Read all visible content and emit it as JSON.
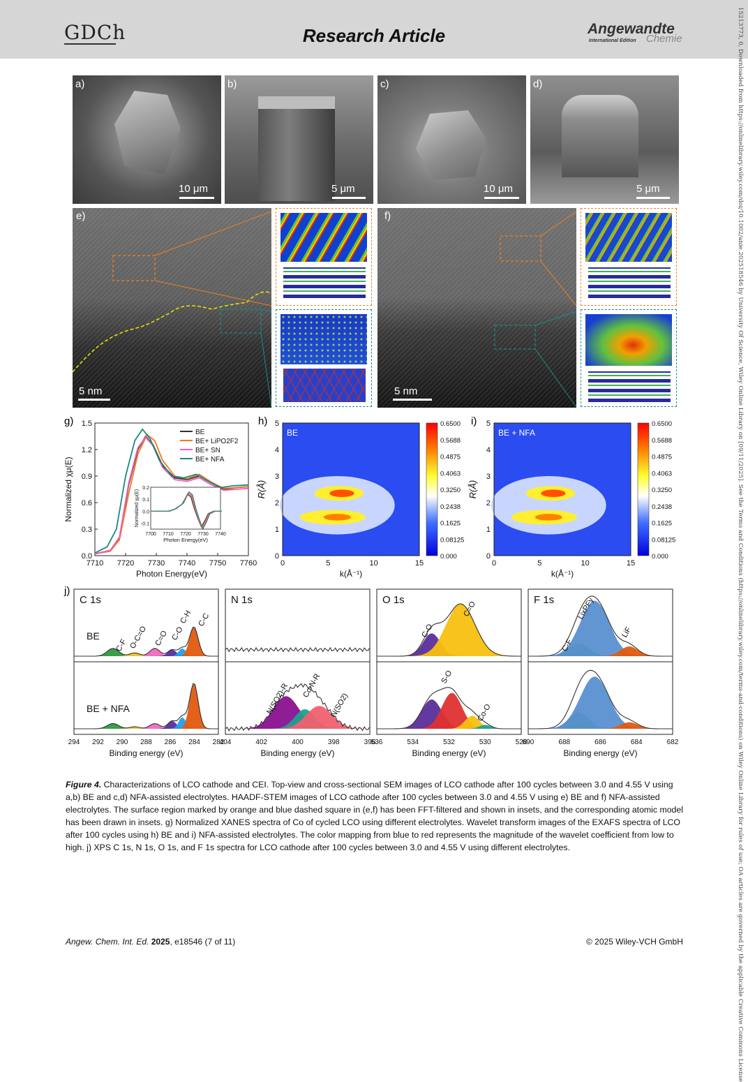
{
  "header": {
    "logo_text": "GDCh",
    "article_type": "Research Article",
    "journal_name": "Angewandte",
    "journal_edition": "International Edition",
    "journal_sub": "Chemie"
  },
  "sidebar_text": "15213773, 0, Downloaded from https://onlinelibrary.wiley.com/doi/10.1002/anie.202518546 by University Of Science, Wiley Online Library on [09/11/2025]. See the Terms and Conditions (https://onlinelibrary.wiley.com/terms-and-conditions) on Wiley Online Library for rules of use; OA articles are governed by the applicable Creative Commons License",
  "panels": {
    "a": {
      "label": "a)",
      "scale": "10 μm"
    },
    "b": {
      "label": "b)",
      "scale": "5 μm"
    },
    "c": {
      "label": "c)",
      "scale": "10 μm"
    },
    "d": {
      "label": "d)",
      "scale": "5 μm"
    },
    "e": {
      "label": "e)",
      "scale": "5 nm"
    },
    "f": {
      "label": "f)",
      "scale": "5 nm"
    },
    "g": {
      "label": "g)"
    },
    "h": {
      "label": "h)"
    },
    "i": {
      "label": "i)"
    },
    "j": {
      "label": "j)"
    }
  },
  "chart_data": [
    {
      "type": "line",
      "panel": "g",
      "xlabel": "Photon Energy(eV)",
      "ylabel": "Normalized χμ(E)",
      "xlim": [
        7710,
        7760
      ],
      "ylim": [
        0,
        1.5
      ],
      "xticks": [
        "7710",
        "7720",
        "7730",
        "7740",
        "7750",
        "7760"
      ],
      "yticks": [
        "0.0",
        "0.3",
        "0.6",
        "0.9",
        "1.2",
        "1.5"
      ],
      "legend": "top-right",
      "series": [
        {
          "name": "BE",
          "color": "#333333",
          "x": [
            7710,
            7715,
            7718,
            7721,
            7724,
            7726.5,
            7729,
            7732,
            7736,
            7740,
            7744,
            7748,
            7752,
            7756,
            7760
          ],
          "y": [
            0.02,
            0.06,
            0.2,
            0.8,
            1.2,
            1.35,
            1.25,
            1.02,
            0.88,
            0.86,
            0.9,
            0.82,
            0.75,
            0.77,
            0.78
          ]
        },
        {
          "name": "BE+ LiPO2F2",
          "color": "#f07820",
          "x": [
            7710,
            7715,
            7718,
            7721,
            7724,
            7727,
            7729.5,
            7732,
            7736,
            7740,
            7744,
            7748,
            7752,
            7756,
            7760
          ],
          "y": [
            0.02,
            0.05,
            0.18,
            0.7,
            1.15,
            1.37,
            1.3,
            1.08,
            0.9,
            0.87,
            0.92,
            0.83,
            0.76,
            0.77,
            0.78
          ]
        },
        {
          "name": "BE+ SN",
          "color": "#ef5fb8",
          "x": [
            7710,
            7715,
            7718,
            7721,
            7724,
            7726.5,
            7729,
            7732,
            7736,
            7740,
            7744,
            7748,
            7752,
            7756,
            7760
          ],
          "y": [
            0.02,
            0.06,
            0.21,
            0.82,
            1.22,
            1.34,
            1.24,
            1.0,
            0.86,
            0.84,
            0.88,
            0.8,
            0.74,
            0.75,
            0.76
          ]
        },
        {
          "name": "BE+ NFA",
          "color": "#1a8a7a",
          "x": [
            7710,
            7714,
            7717,
            7720,
            7723,
            7725.5,
            7728,
            7731,
            7735,
            7739,
            7743,
            7747,
            7751,
            7755,
            7760
          ],
          "y": [
            0.03,
            0.1,
            0.3,
            0.9,
            1.3,
            1.43,
            1.32,
            1.08,
            0.9,
            0.88,
            0.92,
            0.84,
            0.77,
            0.79,
            0.8
          ]
        }
      ],
      "inset": {
        "xlabel": "Photon Energy(eV)",
        "ylabel": "Normalized χμ(E)",
        "xlim": [
          7700,
          7740
        ],
        "ylim": [
          -0.15,
          0.2
        ],
        "xticks": [
          "7700",
          "7710",
          "7720",
          "7730",
          "7740"
        ],
        "yticks": [
          "-0.1",
          "0.0",
          "0.1",
          "0.2"
        ]
      }
    },
    {
      "type": "heatmap",
      "panel": "h",
      "title": "BE",
      "xlabel": "k(Å⁻¹)",
      "ylabel": "R(Å)",
      "xlim": [
        0,
        15
      ],
      "ylim": [
        0,
        5
      ],
      "colorbar": [
        "0.6500",
        "0.5688",
        "0.4875",
        "0.4063",
        "0.3250",
        "0.2438",
        "0.1625",
        "0.08125",
        "0.000"
      ]
    },
    {
      "type": "heatmap",
      "panel": "i",
      "title": "BE + NFA",
      "xlabel": "k(Å⁻¹)",
      "ylabel": "R(Å)",
      "xlim": [
        0,
        15
      ],
      "ylim": [
        0,
        5
      ],
      "colorbar": [
        "0.6500",
        "0.5688",
        "0.4875",
        "0.4063",
        "0.3250",
        "0.2438",
        "0.1625",
        "0.08125",
        "0.000"
      ]
    },
    {
      "type": "area",
      "panel": "j",
      "rows": [
        "BE",
        "BE + NFA"
      ],
      "xlabel": "Binding energy (eV)",
      "spectra": [
        {
          "title": "C 1s",
          "xticks": [
            "294",
            "292",
            "290",
            "288",
            "286",
            "284",
            "282"
          ],
          "peaks_BE": [
            "C-F",
            "O-C=O",
            "C=O",
            "C-O",
            "C-H",
            "C-C"
          ]
        },
        {
          "title": "N 1s",
          "xticks": [
            "404",
            "402",
            "400",
            "398",
            "396"
          ],
          "peaks_NFA": [
            "N(SO2)-R",
            "Co-N-R",
            "N(SO2)"
          ]
        },
        {
          "title": "O 1s",
          "xticks": [
            "536",
            "534",
            "532",
            "530",
            "528"
          ],
          "peaks_BE": [
            "C-O",
            "C=O"
          ],
          "peaks_NFA": [
            "S-O",
            "Co-O"
          ]
        },
        {
          "title": "F 1s",
          "xticks": [
            "690",
            "688",
            "686",
            "684",
            "682"
          ],
          "peaks_BE": [
            "C-F",
            "LixPFy",
            "LiF"
          ]
        }
      ]
    }
  ],
  "caption": {
    "label": "Figure 4.",
    "text": " Characterizations of LCO cathode and CEI. Top-view and cross-sectional SEM images of LCO cathode after 100 cycles between 3.0 and 4.55 V using a,b) BE and c,d) NFA-assisted electrolytes. HAADF-STEM images of LCO cathode after 100 cycles between 3.0 and 4.55 V using e) BE and f) NFA-assisted electrolytes. The surface region marked by orange and blue dashed square in (e,f) has been FFT-filtered and shown in insets, and the corresponding atomic model has been drawn in insets. g) Normalized XANES spectra of Co of cycled LCO using different electrolytes. Wavelet transform images of the EXAFS spectra of LCO after 100 cycles using h) BE and i) NFA-assisted electrolytes. The color mapping from blue to red represents the magnitude of the wavelet coefficient from low to high. j) XPS C 1s, N 1s, O 1s, and F 1s spectra for LCO cathode after 100 cycles between 3.0 and 4.55 V using different electrolytes."
  },
  "footer": {
    "journal": "Angew. Chem. Int. Ed.",
    "year": "2025",
    "citation": ", e18546 (7 of 11)",
    "copyright": "© 2025 Wiley-VCH GmbH"
  }
}
